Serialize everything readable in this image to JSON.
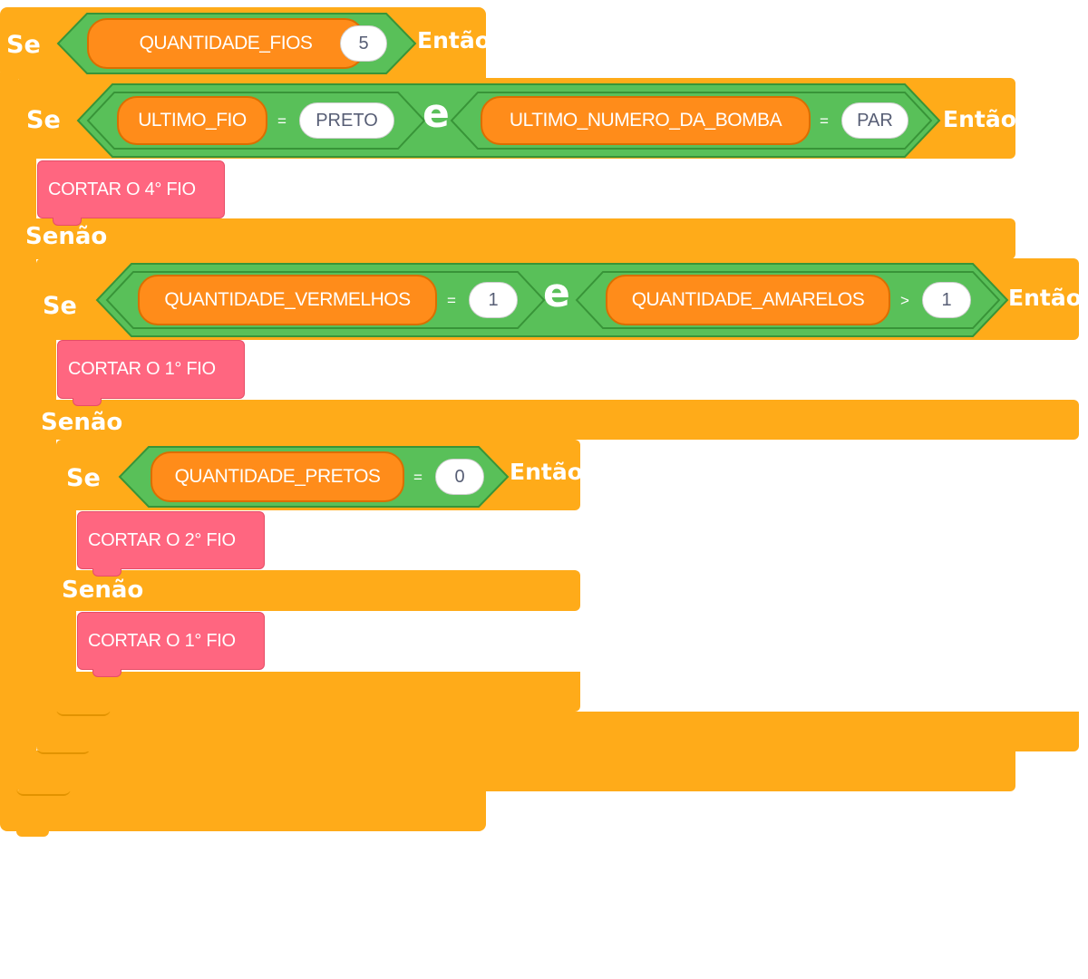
{
  "colors": {
    "control": "#ffab19",
    "operator": "#59c059",
    "variable": "#ff8c1a",
    "command": "#ff6680"
  },
  "keywords": {
    "if": "Se",
    "then": "Então",
    "else": "Senão",
    "and": "e"
  },
  "blocks": {
    "if1": {
      "variable": "QUANTIDADE_FIOS",
      "operator": "=",
      "value": "5"
    },
    "if2": {
      "left": {
        "variable": "ULTIMO_FIO",
        "operator": "=",
        "value": "PRETO"
      },
      "right": {
        "variable": "ULTIMO_NUMERO_DA_BOMBA",
        "operator": "=",
        "value": "PAR"
      },
      "then_action": "CORTAR O 4° FIO"
    },
    "if3": {
      "left": {
        "variable": "QUANTIDADE_VERMELHOS",
        "operator": "=",
        "value": "1"
      },
      "right": {
        "variable": "QUANTIDADE_AMARELOS",
        "operator": ">",
        "value": "1"
      },
      "then_action": "CORTAR O 1° FIO"
    },
    "if4": {
      "variable": "QUANTIDADE_PRETOS",
      "operator": "=",
      "value": "0",
      "then_action": "CORTAR O 2° FIO",
      "else_action": "CORTAR O 1° FIO"
    }
  }
}
